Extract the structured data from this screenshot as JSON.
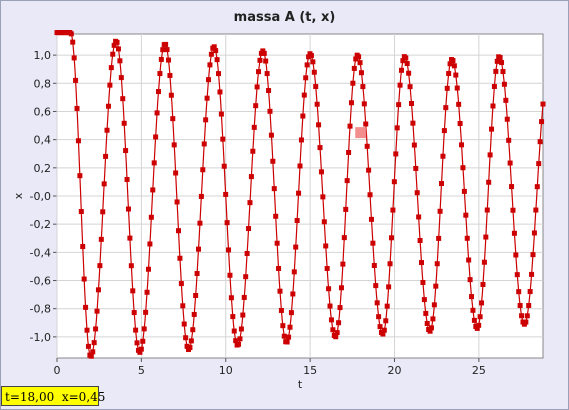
{
  "window": {
    "title": "massa A (t, x)"
  },
  "readout": {
    "text": "t=18,00  x=0,45"
  },
  "colors": {
    "series": "#cc0000",
    "marker_highlight": "#f07a7a",
    "background": "#e9e9f7",
    "readout_bg": "#ffff00"
  },
  "chart_data": {
    "type": "scatter",
    "title": "massa A (t, x)",
    "xlabel": "t",
    "ylabel": "x",
    "xlim": [
      0,
      28.8
    ],
    "ylim": [
      -1.15,
      1.15
    ],
    "x_ticks": [
      0,
      5,
      10,
      15,
      20,
      25
    ],
    "x_tick_labels": [
      "0",
      "5",
      "10",
      "15",
      "20",
      "25"
    ],
    "y_ticks": [
      1.0,
      0.8,
      0.6,
      0.4,
      0.2,
      0.0,
      -0.2,
      -0.4,
      -0.6,
      -0.8,
      -1.0
    ],
    "y_tick_labels": [
      "1,0",
      "0,8",
      "0,6",
      "0,4",
      "0,2",
      "-0,0",
      "-0,2",
      "-0,4",
      "-0,6",
      "-0,8",
      "-1,0"
    ],
    "grid": true,
    "series": [
      {
        "description": "oscillation of x vs t, plateau at ~1.16 until t≈0.8 then oscillates with period ≈2.9 and amplitude decaying from 1.15 to ~0.95",
        "t_start": 0,
        "t_end": 28.8,
        "plateau_value": 1.16,
        "plateau_end_t": 0.8,
        "period": 2.9,
        "amplitude_start": 1.15,
        "amplitude_end": 0.93
      }
    ],
    "peaks": [
      {
        "t": 0.2,
        "x": 1.16
      },
      {
        "t": 3.5,
        "x": 1.1
      },
      {
        "t": 6.4,
        "x": 1.08
      },
      {
        "t": 9.3,
        "x": 1.06
      },
      {
        "t": 12.2,
        "x": 1.03
      },
      {
        "t": 15.0,
        "x": 1.01
      },
      {
        "t": 17.8,
        "x": 1.0
      },
      {
        "t": 20.6,
        "x": 0.99
      },
      {
        "t": 23.4,
        "x": 0.97
      },
      {
        "t": 26.2,
        "x": 0.99
      }
    ],
    "troughs": [
      {
        "t": 2.0,
        "x": -1.14
      },
      {
        "t": 4.9,
        "x": -1.11
      },
      {
        "t": 7.8,
        "x": -1.09
      },
      {
        "t": 10.7,
        "x": -1.06
      },
      {
        "t": 13.6,
        "x": -1.04
      },
      {
        "t": 16.5,
        "x": -1.0
      },
      {
        "t": 19.3,
        "x": -0.98
      },
      {
        "t": 22.1,
        "x": -0.96
      },
      {
        "t": 24.9,
        "x": -0.94
      },
      {
        "t": 27.7,
        "x": -0.91
      }
    ],
    "highlight_point": {
      "t": 18.0,
      "x": 0.45
    }
  }
}
